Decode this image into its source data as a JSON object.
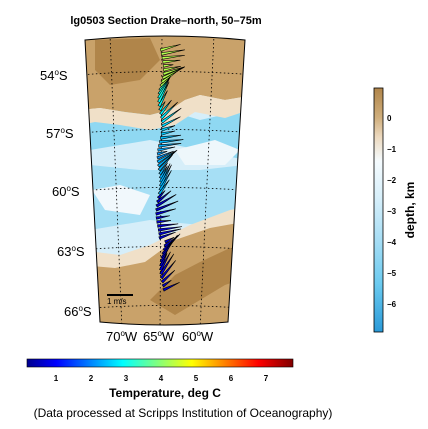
{
  "title": "lg0503 Section Drake–north, 50–75m",
  "map": {
    "lat_labels": [
      {
        "deg": "54",
        "sup": "o",
        "hem": "S"
      },
      {
        "deg": "57",
        "sup": "o",
        "hem": "S"
      },
      {
        "deg": "60",
        "sup": "o",
        "hem": "S"
      },
      {
        "deg": "63",
        "sup": "o",
        "hem": "S"
      },
      {
        "deg": "66",
        "sup": "o",
        "hem": "S"
      }
    ],
    "lon_labels": [
      {
        "deg": "70",
        "sup": "o",
        "hem": "W"
      },
      {
        "deg": "65",
        "sup": "o",
        "hem": "W"
      },
      {
        "deg": "60",
        "sup": "o",
        "hem": "W"
      }
    ],
    "scale_label": "1 m/s",
    "colors": {
      "land": "#c9a26a",
      "land_dark": "#b0854a",
      "shelf": "#f0e0c8",
      "ocean_shallow": "#e6f3fb",
      "ocean_mid": "#c4e6f6",
      "ocean_deep": "#8fd8f2"
    }
  },
  "depth_colorbar": {
    "label": "depth, km",
    "ticks": [
      "0",
      "−1",
      "−2",
      "−3",
      "−4",
      "−5",
      "−6"
    ],
    "colors_top_to_bottom": [
      "#b0854a",
      "#d8b888",
      "#f2e4d0",
      "#f0f8fd",
      "#d0ecf8",
      "#a8def5",
      "#72cdf0",
      "#40b6e8",
      "#2a9ad8"
    ]
  },
  "temp_colorbar": {
    "label": "Temperature, deg C",
    "ticks": [
      "1",
      "2",
      "3",
      "4",
      "5",
      "6",
      "7"
    ],
    "colormap": "jet"
  },
  "credit": "(Data processed at Scripps Institution of Oceanography)"
}
